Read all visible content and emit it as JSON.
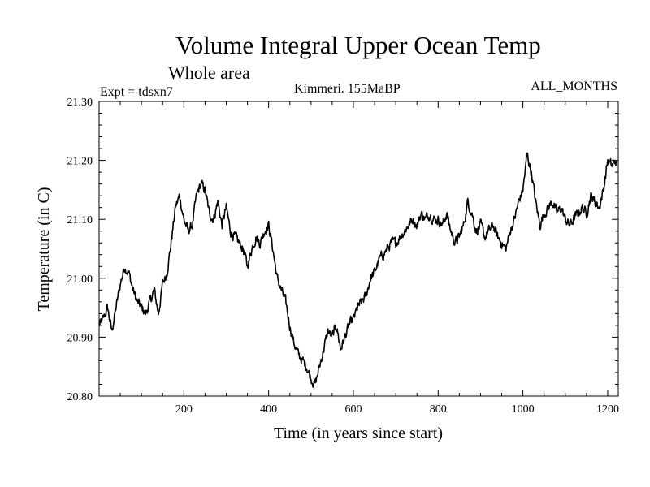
{
  "chart_data": {
    "type": "line",
    "title": "Volume Integral Upper Ocean Temp",
    "subtitle": "Whole area",
    "expt_label": "Expt = tdsxn7",
    "period_label": "Kimmeri. 155MaBP",
    "months_label": "ALL_MONTHS",
    "xlabel": "Time (in years since start)",
    "ylabel": "Temperature (in C)",
    "xlim": [
      0,
      1225
    ],
    "ylim": [
      20.8,
      21.3
    ],
    "x_ticks": [
      200,
      400,
      600,
      800,
      1000,
      1200
    ],
    "x_tick_labels": [
      "200",
      "400",
      "600",
      "800",
      "1000",
      "1200"
    ],
    "y_ticks": [
      20.8,
      20.9,
      21.0,
      21.1,
      21.2,
      21.3
    ],
    "y_tick_labels": [
      "20.80",
      "20.90",
      "21.00",
      "21.10",
      "21.20",
      "21.30"
    ],
    "line_color": "#000000",
    "series": [
      {
        "name": "Upper Ocean Temp",
        "x": [
          0,
          10,
          20,
          30,
          40,
          50,
          60,
          70,
          80,
          90,
          100,
          110,
          120,
          130,
          140,
          150,
          160,
          170,
          180,
          190,
          200,
          210,
          220,
          230,
          240,
          250,
          260,
          270,
          280,
          290,
          300,
          310,
          320,
          330,
          340,
          350,
          360,
          370,
          380,
          390,
          400,
          410,
          420,
          430,
          440,
          450,
          460,
          470,
          480,
          490,
          500,
          510,
          520,
          530,
          540,
          550,
          560,
          570,
          580,
          590,
          600,
          610,
          620,
          630,
          640,
          650,
          660,
          670,
          680,
          690,
          700,
          710,
          720,
          730,
          740,
          750,
          760,
          770,
          780,
          790,
          800,
          810,
          820,
          830,
          840,
          850,
          860,
          870,
          880,
          890,
          900,
          910,
          920,
          930,
          940,
          950,
          960,
          970,
          980,
          990,
          1000,
          1010,
          1020,
          1030,
          1040,
          1050,
          1060,
          1070,
          1080,
          1090,
          1100,
          1110,
          1120,
          1130,
          1140,
          1150,
          1160,
          1170,
          1180,
          1190,
          1200,
          1210,
          1220
        ],
        "values": [
          20.92,
          20.93,
          20.95,
          20.91,
          20.95,
          20.99,
          21.02,
          21.01,
          20.98,
          20.96,
          20.95,
          20.94,
          20.96,
          20.98,
          20.94,
          20.99,
          21.01,
          21.06,
          21.12,
          21.14,
          21.1,
          21.08,
          21.09,
          21.14,
          21.16,
          21.15,
          21.11,
          21.1,
          21.13,
          21.09,
          21.12,
          21.08,
          21.07,
          21.06,
          21.05,
          21.02,
          21.05,
          21.07,
          21.06,
          21.08,
          21.09,
          21.05,
          21.0,
          20.98,
          20.96,
          20.92,
          20.89,
          20.87,
          20.86,
          20.85,
          20.83,
          20.82,
          20.85,
          20.88,
          20.91,
          20.9,
          20.92,
          20.88,
          20.9,
          20.92,
          20.93,
          20.95,
          20.96,
          20.97,
          21.0,
          21.01,
          21.03,
          21.04,
          21.05,
          21.06,
          21.06,
          21.07,
          21.08,
          21.09,
          21.1,
          21.09,
          21.11,
          21.1,
          21.11,
          21.1,
          21.1,
          21.09,
          21.11,
          21.08,
          21.06,
          21.07,
          21.09,
          21.13,
          21.11,
          21.08,
          21.09,
          21.07,
          21.08,
          21.09,
          21.07,
          21.06,
          21.05,
          21.08,
          21.1,
          21.13,
          21.15,
          21.21,
          21.18,
          21.13,
          21.09,
          21.11,
          21.12,
          21.13,
          21.11,
          21.12,
          21.1,
          21.09,
          21.1,
          21.11,
          21.12,
          21.11,
          21.14,
          21.13,
          21.12,
          21.15,
          21.2,
          21.19,
          21.2
        ]
      }
    ]
  }
}
